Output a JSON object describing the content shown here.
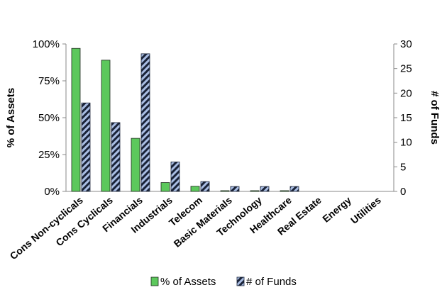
{
  "chart_data": {
    "type": "bar",
    "title": "",
    "categories": [
      "Cons Non-cyclicals",
      "Cons Cyclicals",
      "Financials",
      "Industrials",
      "Telecom",
      "Basic Materials",
      "Technology",
      "Healthcare",
      "Real Estate",
      "Energy",
      "Utilities"
    ],
    "series": [
      {
        "name": "% of Assets",
        "axis": "left",
        "color": "#5cc85c",
        "values": [
          97,
          89,
          36,
          6,
          3.5,
          0.5,
          0.5,
          0.5,
          0,
          0,
          0
        ]
      },
      {
        "name": "# of Funds",
        "axis": "right",
        "color": "#a9bde3",
        "pattern": "dark diagonal stripes",
        "values": [
          18,
          14,
          28,
          6,
          2,
          1,
          1,
          1,
          0,
          0,
          0
        ]
      }
    ],
    "y_left": {
      "label": "% of Assets",
      "range": [
        0,
        100
      ],
      "ticks": [
        0,
        25,
        50,
        75,
        100
      ],
      "tick_labels": [
        "0%",
        "25%",
        "50%",
        "75%",
        "100%"
      ]
    },
    "y_right": {
      "label": "# of Funds",
      "range": [
        0,
        30
      ],
      "ticks": [
        0,
        5,
        10,
        15,
        20,
        25,
        30
      ],
      "tick_labels": [
        "0",
        "5",
        "10",
        "15",
        "20",
        "25",
        "30"
      ]
    },
    "grid": false,
    "legend": "bottom-center"
  }
}
